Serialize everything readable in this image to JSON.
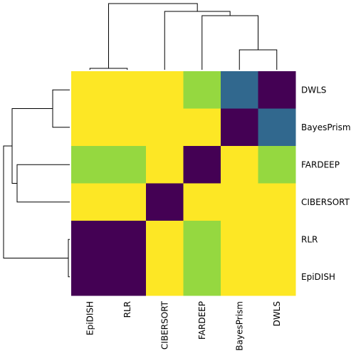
{
  "chart_data": {
    "type": "heatmap",
    "title": "",
    "xlabel": "",
    "ylabel": "",
    "columns": [
      "EpiDISH",
      "RLR",
      "CIBERSORT",
      "FARDEEP",
      "BayesPrism",
      "DWLS"
    ],
    "rows": [
      "DWLS",
      "BayesPrism",
      "FARDEEP",
      "CIBERSORT",
      "RLR",
      "EpiDISH"
    ],
    "values": [
      [
        4,
        4,
        4,
        3,
        1,
        0
      ],
      [
        4,
        4,
        4,
        4,
        0,
        1
      ],
      [
        3,
        3,
        4,
        0,
        4,
        3
      ],
      [
        4,
        4,
        0,
        4,
        4,
        4
      ],
      [
        0,
        0,
        4,
        3,
        4,
        4
      ],
      [
        0,
        0,
        4,
        3,
        4,
        4
      ]
    ],
    "colormap": {
      "0": "#440154",
      "1": "#31688e",
      "3": "#95d840",
      "4": "#fde725"
    },
    "dendrograms": {
      "rows": true,
      "columns": true
    },
    "legend": "none"
  }
}
